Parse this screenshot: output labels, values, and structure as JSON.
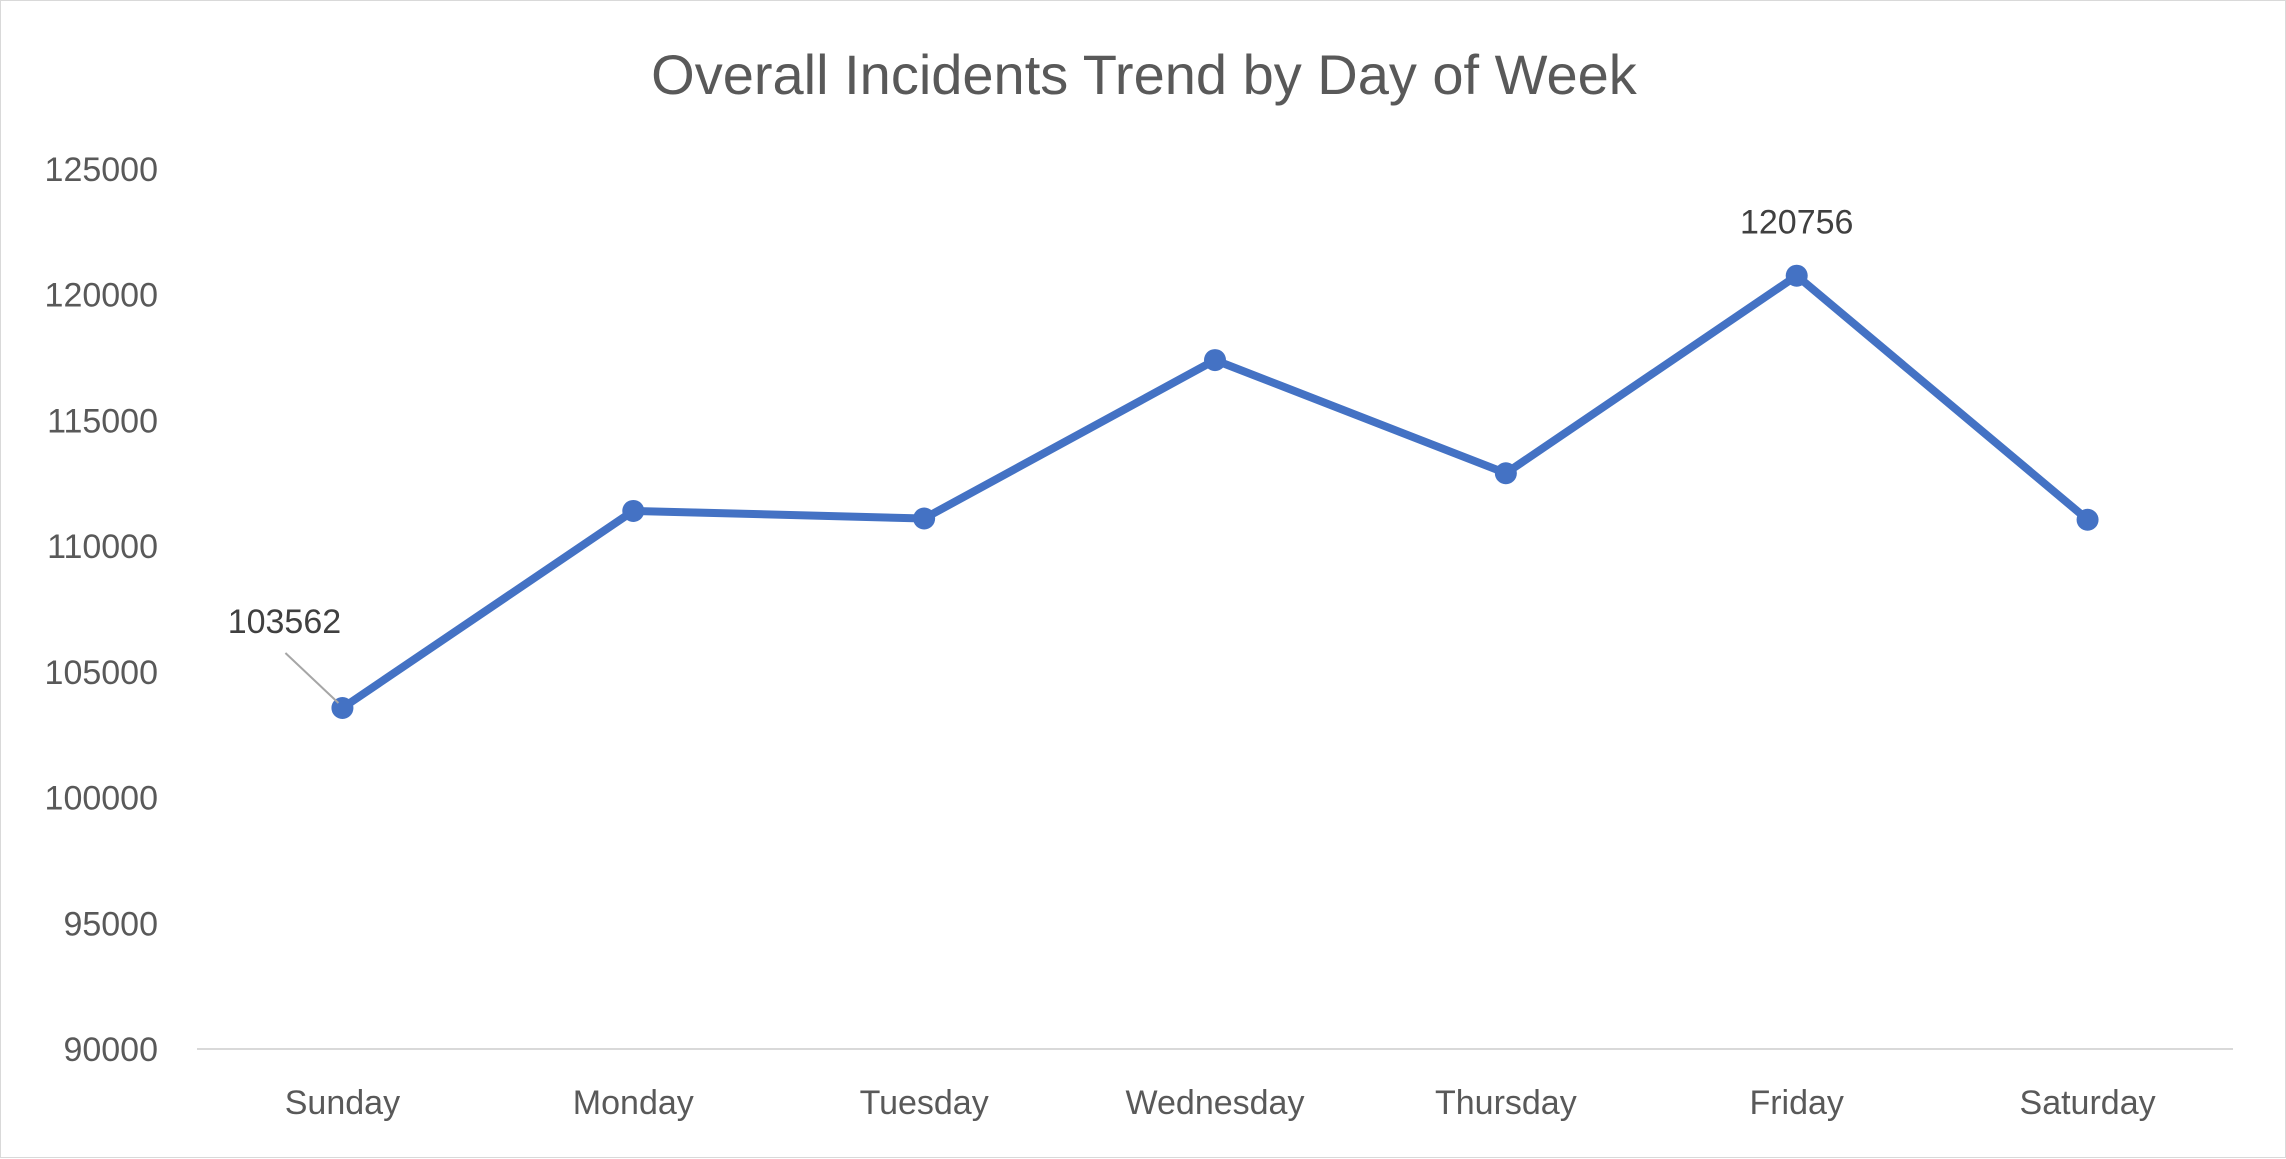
{
  "chart_data": {
    "type": "line",
    "title": "Overall Incidents Trend by Day of Week",
    "xlabel": "",
    "ylabel": "",
    "categories": [
      "Sunday",
      "Monday",
      "Tuesday",
      "Wednesday",
      "Thursday",
      "Friday",
      "Saturday"
    ],
    "series": [
      {
        "values": [
          103562,
          111400,
          111100,
          117400,
          112900,
          120756,
          111050
        ],
        "color": "#4472c4",
        "markers": true
      }
    ],
    "data_labels": [
      {
        "category": "Sunday",
        "text": "103562"
      },
      {
        "category": "Friday",
        "text": "120756"
      }
    ],
    "ylim": [
      90000,
      125000
    ],
    "yticks": [
      "90000",
      "95000",
      "100000",
      "105000",
      "110000",
      "115000",
      "120000",
      "125000"
    ],
    "grid": false,
    "legend": "none",
    "colors": {
      "line": "#4472c4",
      "axis": "#d9d9d9",
      "text": "#595959",
      "label_text": "#404040",
      "leader_line": "#a6a6a6"
    }
  }
}
